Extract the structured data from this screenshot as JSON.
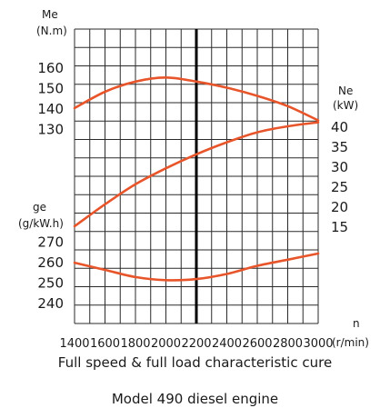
{
  "chart_data": {
    "type": "line",
    "x_axis": {
      "label": "n",
      "unit": "(r/min)",
      "range": [
        1400,
        3000
      ],
      "ticks": [
        1400,
        1600,
        1800,
        2000,
        2200,
        2400,
        2600,
        2800,
        3000
      ],
      "marked_value": 2200
    },
    "axes": {
      "me": {
        "label": "Me",
        "unit": "(N.m)",
        "side": "left",
        "ticks": [
          130,
          140,
          150,
          160
        ]
      },
      "ne": {
        "label": "Ne",
        "unit": "(kW)",
        "side": "right",
        "ticks": [
          15,
          20,
          25,
          30,
          35,
          40
        ]
      },
      "ge": {
        "label": "ge",
        "unit": "(g/kW.h)",
        "side": "left",
        "ticks": [
          240,
          250,
          260,
          270
        ]
      }
    },
    "series": [
      {
        "axis": "me",
        "color": "#e8552a",
        "points": [
          [
            1400,
            140
          ],
          [
            1600,
            148
          ],
          [
            1800,
            153
          ],
          [
            2000,
            155
          ],
          [
            2200,
            153
          ],
          [
            2400,
            150
          ],
          [
            2600,
            146
          ],
          [
            2800,
            141
          ],
          [
            3000,
            134
          ]
        ]
      },
      {
        "axis": "ne",
        "color": "#e8552a",
        "points": [
          [
            1400,
            15
          ],
          [
            1600,
            20.5
          ],
          [
            1800,
            25.5
          ],
          [
            2000,
            29.5
          ],
          [
            2200,
            33
          ],
          [
            2400,
            36
          ],
          [
            2600,
            38.5
          ],
          [
            2800,
            40
          ],
          [
            3000,
            41
          ]
        ]
      },
      {
        "axis": "ge",
        "color": "#e8552a",
        "points": [
          [
            1400,
            259.5
          ],
          [
            1600,
            256
          ],
          [
            1800,
            252.5
          ],
          [
            2000,
            251
          ],
          [
            2200,
            251.5
          ],
          [
            2400,
            254
          ],
          [
            2600,
            258
          ],
          [
            2800,
            261
          ],
          [
            3000,
            264
          ]
        ]
      }
    ],
    "grid": true,
    "caption": "Full speed & full load characteristic cure",
    "title": "Model 490 diesel engine"
  }
}
